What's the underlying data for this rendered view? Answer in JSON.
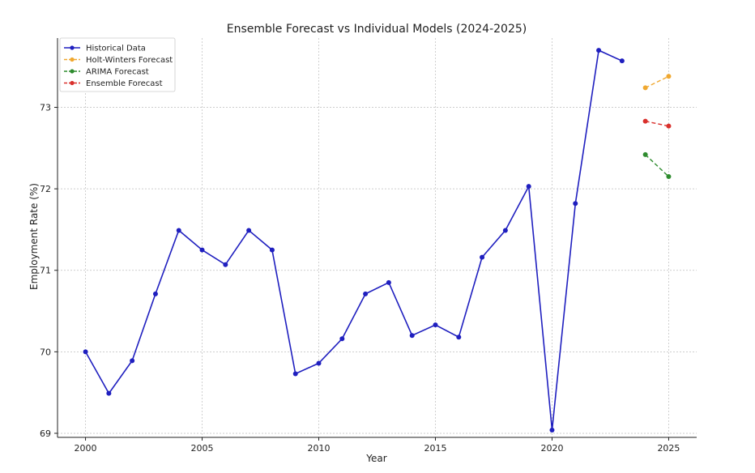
{
  "chart_data": {
    "type": "line",
    "title": "Ensemble Forecast vs Individual Models (2024-2025)",
    "xlabel": "Year",
    "ylabel": "Employment Rate (%)",
    "xlim": [
      1998.8,
      2026.2
    ],
    "ylim": [
      68.95,
      73.85
    ],
    "xticks": [
      2000,
      2005,
      2010,
      2015,
      2020,
      2025
    ],
    "yticks": [
      69,
      70,
      71,
      72,
      73
    ],
    "grid": true,
    "legend_position": "top-left",
    "series": [
      {
        "name": "Historical Data",
        "color": "#1f1fbf",
        "style": "solid",
        "x": [
          2000,
          2001,
          2002,
          2003,
          2004,
          2005,
          2006,
          2007,
          2008,
          2009,
          2010,
          2011,
          2012,
          2013,
          2014,
          2015,
          2016,
          2017,
          2018,
          2019,
          2020,
          2021,
          2022,
          2023
        ],
        "y": [
          70.0,
          69.49,
          69.89,
          70.71,
          71.49,
          71.25,
          71.07,
          71.49,
          71.25,
          69.73,
          69.86,
          70.16,
          70.71,
          70.85,
          70.2,
          70.33,
          70.18,
          71.16,
          71.49,
          72.03,
          69.04,
          71.82,
          73.7,
          73.57
        ]
      },
      {
        "name": "Holt-Winters Forecast",
        "color": "#f0a830",
        "style": "dashed",
        "x": [
          2024,
          2025
        ],
        "y": [
          73.24,
          73.38
        ]
      },
      {
        "name": "ARIMA Forecast",
        "color": "#2e8b2e",
        "style": "dashed",
        "x": [
          2024,
          2025
        ],
        "y": [
          72.42,
          72.15
        ]
      },
      {
        "name": "Ensemble Forecast",
        "color": "#d9302c",
        "style": "dashed",
        "x": [
          2024,
          2025
        ],
        "y": [
          72.83,
          72.77
        ]
      }
    ]
  }
}
